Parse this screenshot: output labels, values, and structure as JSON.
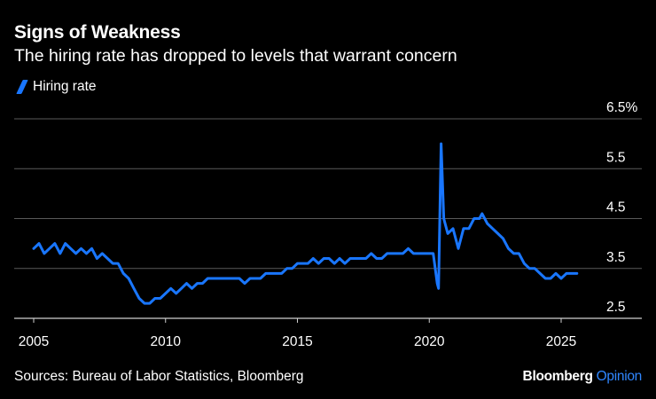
{
  "header": {
    "title": "Signs of Weakness",
    "subtitle": "The hiring rate has dropped to levels that warrant concern"
  },
  "legend": {
    "label": "Hiring rate",
    "color": "#1976ff"
  },
  "footer": {
    "source": "Sources: Bureau of Labor Statistics, Bloomberg",
    "brand_bold": "Bloomberg",
    "brand_light": "Opinion"
  },
  "chart_data": {
    "type": "line",
    "title": "Signs of Weakness",
    "subtitle": "The hiring rate has dropped to levels that warrant concern",
    "xlabel": "",
    "ylabel": "",
    "xlim": [
      2005,
      2026.5
    ],
    "ylim": [
      2.5,
      6.5
    ],
    "x_ticks": [
      2005,
      2010,
      2015,
      2020,
      2025
    ],
    "x_tick_labels": [
      "2005",
      "2010",
      "2015",
      "2020",
      "2025"
    ],
    "y_ticks": [
      2.5,
      3.5,
      4.5,
      5.5,
      6.5
    ],
    "y_tick_labels": [
      "2.5",
      "3.5",
      "4.5",
      "5.5",
      "6.5%"
    ],
    "grid": "horizontal",
    "series": [
      {
        "name": "Hiring rate",
        "color": "#1976ff",
        "x": [
          2005.0,
          2005.2,
          2005.4,
          2005.6,
          2005.8,
          2006.0,
          2006.2,
          2006.4,
          2006.6,
          2006.8,
          2007.0,
          2007.2,
          2007.4,
          2007.6,
          2007.8,
          2008.0,
          2008.2,
          2008.4,
          2008.6,
          2008.8,
          2009.0,
          2009.2,
          2009.4,
          2009.6,
          2009.8,
          2010.0,
          2010.2,
          2010.4,
          2010.6,
          2010.8,
          2011.0,
          2011.2,
          2011.4,
          2011.6,
          2011.8,
          2012.0,
          2012.2,
          2012.4,
          2012.6,
          2012.8,
          2013.0,
          2013.2,
          2013.4,
          2013.6,
          2013.8,
          2014.0,
          2014.2,
          2014.4,
          2014.6,
          2014.8,
          2015.0,
          2015.2,
          2015.4,
          2015.6,
          2015.8,
          2016.0,
          2016.2,
          2016.4,
          2016.6,
          2016.8,
          2017.0,
          2017.2,
          2017.4,
          2017.6,
          2017.8,
          2018.0,
          2018.2,
          2018.4,
          2018.6,
          2018.8,
          2019.0,
          2019.2,
          2019.4,
          2019.6,
          2019.8,
          2020.0,
          2020.15,
          2020.3,
          2020.35,
          2020.45,
          2020.55,
          2020.7,
          2020.9,
          2021.1,
          2021.3,
          2021.5,
          2021.7,
          2021.9,
          2022.0,
          2022.2,
          2022.4,
          2022.6,
          2022.8,
          2023.0,
          2023.2,
          2023.4,
          2023.6,
          2023.8,
          2024.0,
          2024.2,
          2024.4,
          2024.6,
          2024.8,
          2025.0,
          2025.2,
          2025.4,
          2025.6
        ],
        "y": [
          3.9,
          4.0,
          3.8,
          3.9,
          4.0,
          3.8,
          4.0,
          3.9,
          3.8,
          3.9,
          3.8,
          3.9,
          3.7,
          3.8,
          3.7,
          3.6,
          3.6,
          3.4,
          3.3,
          3.1,
          2.9,
          2.8,
          2.8,
          2.9,
          2.9,
          3.0,
          3.1,
          3.0,
          3.1,
          3.2,
          3.1,
          3.2,
          3.2,
          3.3,
          3.3,
          3.3,
          3.3,
          3.3,
          3.3,
          3.3,
          3.2,
          3.3,
          3.3,
          3.3,
          3.4,
          3.4,
          3.4,
          3.4,
          3.5,
          3.5,
          3.6,
          3.6,
          3.6,
          3.7,
          3.6,
          3.7,
          3.7,
          3.6,
          3.7,
          3.6,
          3.7,
          3.7,
          3.7,
          3.7,
          3.8,
          3.7,
          3.7,
          3.8,
          3.8,
          3.8,
          3.8,
          3.9,
          3.8,
          3.8,
          3.8,
          3.8,
          3.8,
          3.2,
          3.1,
          6.0,
          4.5,
          4.2,
          4.3,
          3.9,
          4.3,
          4.3,
          4.5,
          4.5,
          4.6,
          4.4,
          4.3,
          4.2,
          4.1,
          3.9,
          3.8,
          3.8,
          3.6,
          3.5,
          3.5,
          3.4,
          3.3,
          3.3,
          3.4,
          3.3,
          3.4,
          3.4,
          3.4
        ]
      }
    ]
  }
}
